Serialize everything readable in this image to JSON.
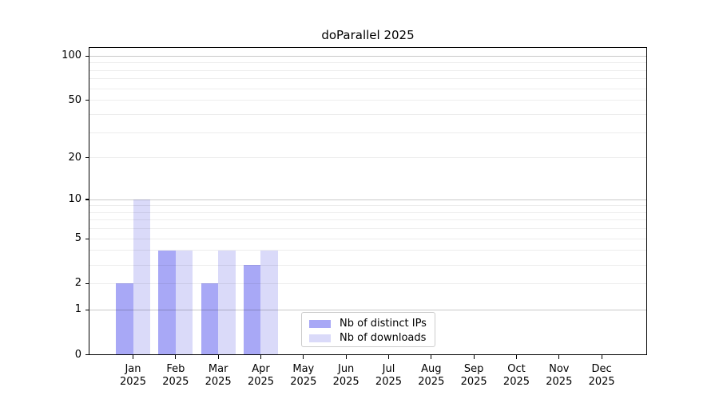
{
  "chart_data": {
    "type": "bar",
    "title": "doParallel 2025",
    "categories": [
      "Jan 2025",
      "Feb 2025",
      "Mar 2025",
      "Apr 2025",
      "May 2025",
      "Jun 2025",
      "Jul 2025",
      "Aug 2025",
      "Sep 2025",
      "Oct 2025",
      "Nov 2025",
      "Dec 2025"
    ],
    "series": [
      {
        "name": "Nb of distinct IPs",
        "color": "#a8a8f6",
        "values": [
          2,
          4,
          2,
          3,
          0,
          0,
          0,
          0,
          0,
          0,
          0,
          0
        ]
      },
      {
        "name": "Nb of downloads",
        "color": "#dadaf9",
        "values": [
          10,
          4,
          4,
          4,
          0,
          0,
          0,
          0,
          0,
          0,
          0,
          0
        ]
      }
    ],
    "xlabel": "",
    "ylabel": "",
    "yscale": "log1p",
    "ylim": [
      0,
      115
    ],
    "yticks": [
      0,
      1,
      2,
      5,
      10,
      20,
      50,
      100
    ],
    "minor_gridlines": [
      2,
      3,
      4,
      5,
      6,
      7,
      8,
      9,
      20,
      30,
      40,
      50,
      60,
      70,
      80,
      90
    ],
    "major_gridlines": [
      1,
      10,
      100
    ],
    "grid": "horizontal",
    "legend_position": "lower-center-inside"
  },
  "colors": {
    "minor_gridline": "rgba(0,0,0,0.07)",
    "major_gridline": "rgba(0,0,0,0.21)",
    "axis": "#000000",
    "legend_border": "#cccccc",
    "background": "#ffffff"
  }
}
